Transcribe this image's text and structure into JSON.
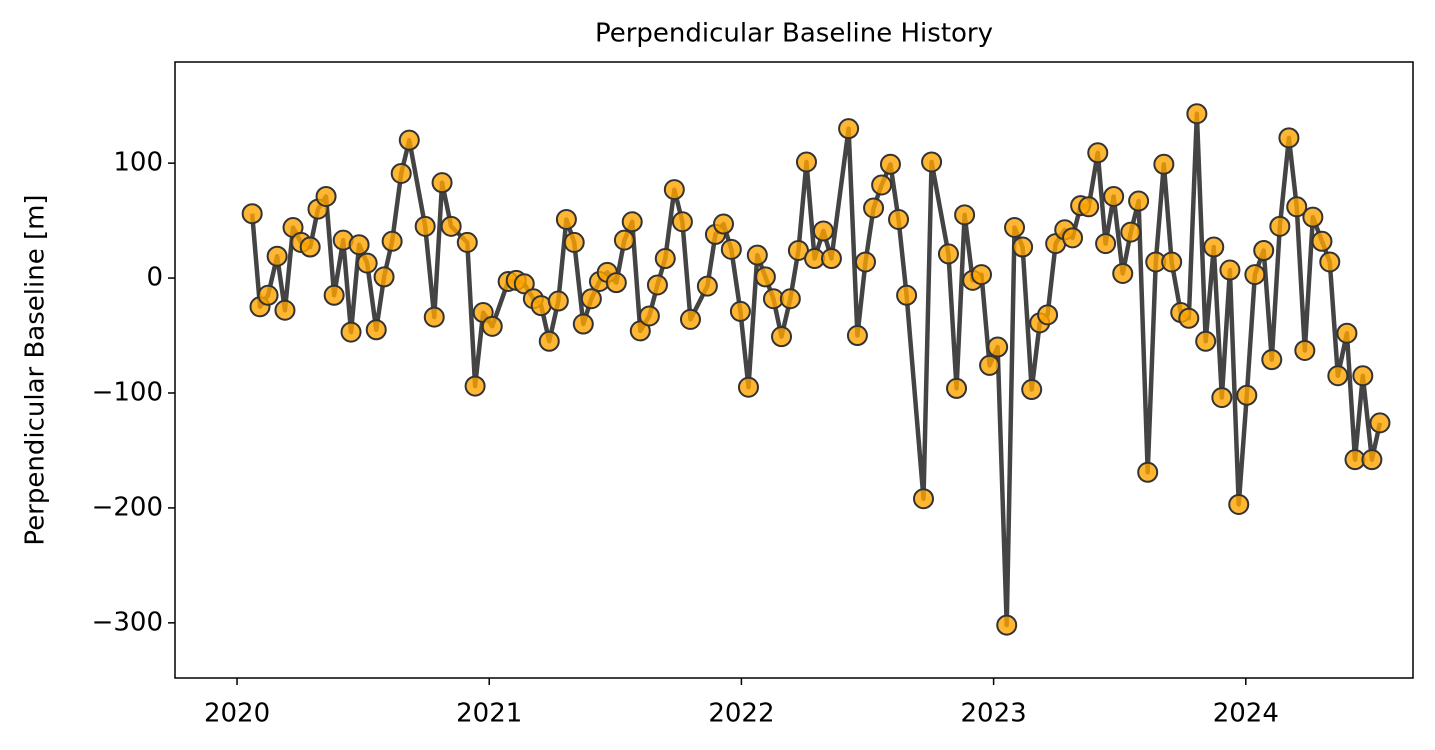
{
  "chart_data": {
    "type": "line",
    "title": "Perpendicular Baseline History",
    "y_label": "Perpendicular Baseline [m]",
    "x": [
      2020.06,
      2020.091,
      2020.123,
      2020.159,
      2020.19,
      2020.222,
      2020.254,
      2020.29,
      2020.321,
      2020.353,
      2020.385,
      2020.421,
      2020.452,
      2020.484,
      2020.516,
      2020.552,
      2020.583,
      2020.615,
      2020.651,
      2020.683,
      2020.746,
      2020.782,
      2020.813,
      2020.849,
      2020.913,
      2020.944,
      2020.976,
      2021.012,
      2021.075,
      2021.107,
      2021.139,
      2021.175,
      2021.206,
      2021.238,
      2021.274,
      2021.306,
      2021.337,
      2021.373,
      2021.405,
      2021.437,
      2021.468,
      2021.504,
      2021.536,
      2021.567,
      2021.599,
      2021.635,
      2021.667,
      2021.698,
      2021.734,
      2021.766,
      2021.798,
      2021.865,
      2021.897,
      2021.929,
      2021.96,
      2021.996,
      2022.028,
      2022.063,
      2022.095,
      2022.127,
      2022.159,
      2022.194,
      2022.226,
      2022.258,
      2022.29,
      2022.325,
      2022.357,
      2022.425,
      2022.46,
      2022.492,
      2022.524,
      2022.556,
      2022.591,
      2022.623,
      2022.655,
      2022.722,
      2022.754,
      2022.821,
      2022.853,
      2022.885,
      2022.917,
      2022.952,
      2022.984,
      2023.016,
      2023.052,
      2023.083,
      2023.115,
      2023.151,
      2023.183,
      2023.214,
      2023.246,
      2023.282,
      2023.313,
      2023.345,
      2023.377,
      2023.413,
      2023.444,
      2023.476,
      2023.512,
      2023.544,
      2023.575,
      2023.611,
      2023.643,
      2023.675,
      2023.706,
      2023.742,
      2023.774,
      2023.806,
      2023.841,
      2023.873,
      2023.905,
      2023.937,
      2023.972,
      2024.004,
      2024.036,
      2024.071,
      2024.103,
      2024.135,
      2024.171,
      2024.202,
      2024.234,
      2024.266,
      2024.302,
      2024.333,
      2024.365,
      2024.401,
      2024.433,
      2024.464,
      2024.5,
      2024.532
    ],
    "series": [
      {
        "line_color": "#444444",
        "marker_color": "#ffa500",
        "marker_edge": "#333333",
        "values": [
          56,
          -25,
          -15,
          19,
          -28,
          44,
          31,
          27,
          60,
          71,
          -15,
          33,
          -47,
          29,
          13,
          -45,
          1,
          32,
          91,
          120,
          45,
          -34,
          83,
          45,
          31,
          -94,
          -30,
          -42,
          -3,
          -2,
          -5,
          -18,
          -24,
          -55,
          -20,
          51,
          31,
          -40,
          -18,
          -3,
          5,
          -4,
          33,
          49,
          -46,
          -33,
          -6,
          17,
          77,
          49,
          -36,
          -7,
          38,
          47,
          25,
          -29,
          -95,
          20,
          1,
          -18,
          -51,
          -18,
          24,
          101,
          17,
          41,
          17,
          130,
          -50,
          14,
          61,
          81,
          99,
          51,
          -15,
          -192,
          101,
          21,
          -96,
          55,
          -2,
          3,
          -76,
          -60,
          -302,
          44,
          27,
          -97,
          -39,
          -32,
          30,
          42,
          35,
          63,
          62,
          109,
          30,
          71,
          4,
          40,
          67,
          -169,
          14,
          99,
          14,
          -30,
          -35,
          143,
          -55,
          27,
          -104,
          7,
          -197,
          -102,
          3,
          24,
          -71,
          45,
          122,
          62,
          -63,
          53,
          32,
          14,
          -85,
          -48,
          -158,
          -85,
          -158,
          -126
        ]
      }
    ],
    "xlim": [
      2019.754,
      2024.663
    ],
    "xticks": [
      2020,
      2021,
      2022,
      2023,
      2024
    ],
    "ylim": [
      -348,
      188
    ],
    "yticks": [
      {
        "value": -300,
        "label": "−300"
      },
      {
        "value": -200,
        "label": "−200"
      },
      {
        "value": -100,
        "label": "−100"
      },
      0,
      100
    ],
    "grid": false
  }
}
